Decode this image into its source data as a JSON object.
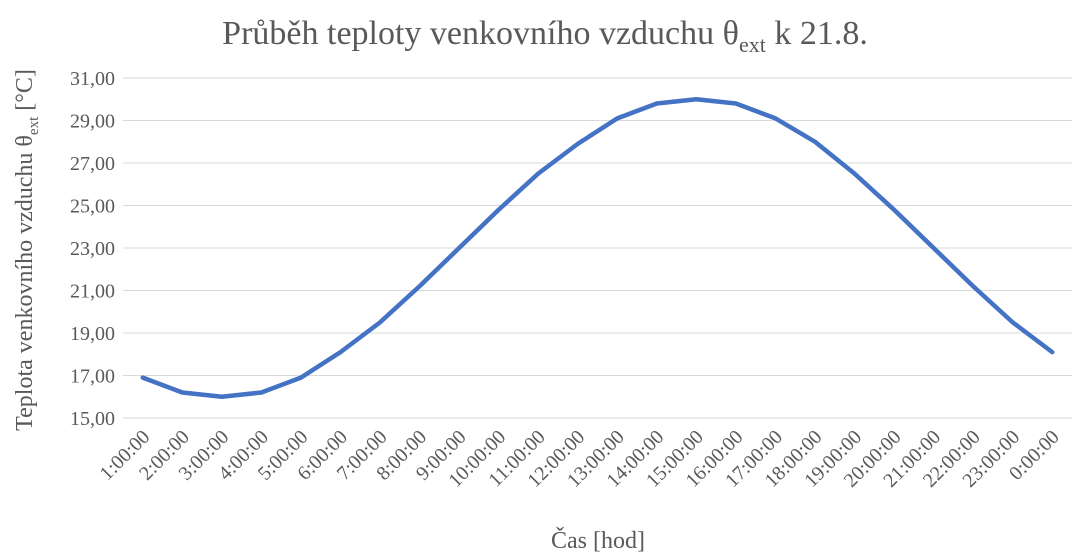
{
  "chart_data": {
    "type": "line",
    "title": {
      "main": "Průběh teploty venkovního vzduchu θ",
      "sub": "ext",
      "tail": " k 21.8."
    },
    "x_label": "Čas [hod]",
    "y_label": {
      "main": "Teplota venkovního vzduchu θ",
      "sub": "ext",
      "tail": " [°C]"
    },
    "categories": [
      "1:00:00",
      "2:00:00",
      "3:00:00",
      "4:00:00",
      "5:00:00",
      "6:00:00",
      "7:00:00",
      "8:00:00",
      "9:00:00",
      "10:00:00",
      "11:00:00",
      "12:00:00",
      "13:00:00",
      "14:00:00",
      "15:00:00",
      "16:00:00",
      "17:00:00",
      "18:00:00",
      "19:00:00",
      "20:00:00",
      "21:00:00",
      "22:00:00",
      "23:00:00",
      "0:00:00"
    ],
    "series": [
      {
        "color": "#4472c4",
        "values": [
          16.9,
          16.2,
          16.0,
          16.2,
          16.9,
          18.1,
          19.5,
          21.2,
          23.0,
          24.8,
          26.5,
          27.9,
          29.1,
          29.8,
          30.0,
          29.8,
          29.1,
          28.0,
          26.5,
          24.8,
          23.0,
          21.2,
          19.5,
          18.1
        ]
      }
    ],
    "ylim": [
      15,
      31
    ],
    "yticks": [
      {
        "value": 15,
        "label": "15,00"
      },
      {
        "value": 17,
        "label": "17,00"
      },
      {
        "value": 19,
        "label": "19,00"
      },
      {
        "value": 21,
        "label": "21,00"
      },
      {
        "value": 23,
        "label": "23,00"
      },
      {
        "value": 25,
        "label": "25,00"
      },
      {
        "value": 27,
        "label": "27,00"
      },
      {
        "value": 29,
        "label": "29,00"
      },
      {
        "value": 31,
        "label": "31,00"
      }
    ],
    "grid": true
  }
}
